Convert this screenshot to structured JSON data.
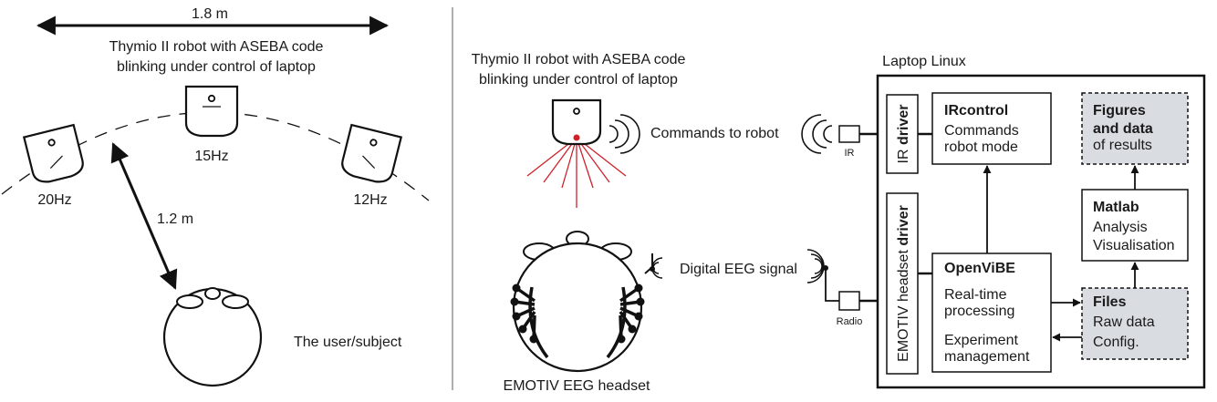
{
  "left_panel": {
    "distance_width": "1.8 m",
    "robot_caption_line1": "Thymio II robot with ASEBA code",
    "robot_caption_line2": "blinking under control of laptop",
    "robot_freqs": {
      "left": "20Hz",
      "center": "15Hz",
      "right": "12Hz"
    },
    "distance_user": "1.2 m",
    "user_label": "The user/subject"
  },
  "right_panel": {
    "robot_caption_line1": "Thymio II robot with ASEBA code",
    "robot_caption_line2": "blinking under control of laptop",
    "commands_label": "Commands to robot",
    "ir_label": "IR",
    "eeg_signal_label": "Digital EEG signal",
    "radio_label": "Radio",
    "headset_label": "EMOTIV EEG headset",
    "laptop_label": "Laptop Linux",
    "ir_driver_prefix": "IR ",
    "ir_driver_bold": "driver",
    "emotiv_driver_prefix": "EMOTIV headset ",
    "emotiv_driver_bold": "driver",
    "ircontrol": {
      "title": "IRcontrol",
      "line1": "Commands",
      "line2": "robot mode"
    },
    "openvibe": {
      "title": "OpenViBE",
      "line1": "Real-time",
      "line2": "processing",
      "line3": "Experiment",
      "line4": "management"
    },
    "figures": {
      "line1": "Figures",
      "line2": "and data",
      "line3": "of results"
    },
    "matlab": {
      "title": "Matlab",
      "line1": "Analysis",
      "line2": "Visualisation"
    },
    "files": {
      "title": "Files",
      "line1": "Raw data",
      "line2": "Config."
    }
  },
  "colors": {
    "highlight_box": "#d9dde2",
    "led_red": "#d0202a"
  }
}
